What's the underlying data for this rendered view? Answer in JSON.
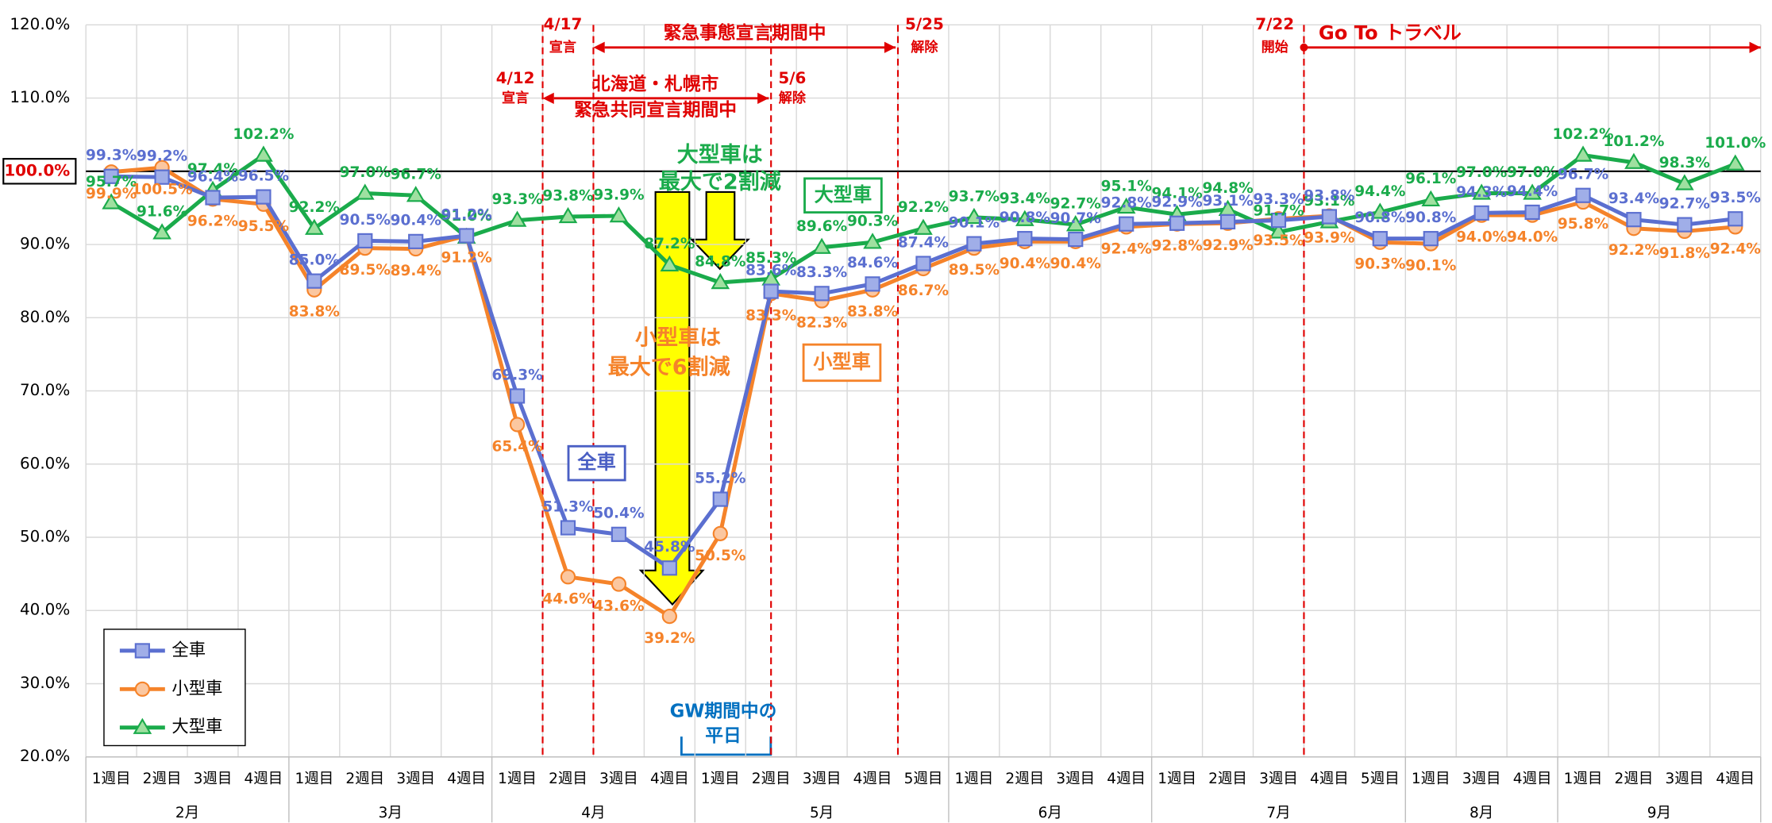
{
  "chart_data": {
    "type": "line",
    "months": [
      {
        "label": "2月",
        "weeks": [
          "1週目",
          "2週目",
          "3週目",
          "4週目"
        ]
      },
      {
        "label": "3月",
        "weeks": [
          "1週目",
          "2週目",
          "3週目",
          "4週目"
        ]
      },
      {
        "label": "4月",
        "weeks": [
          "1週目",
          "2週目",
          "3週目",
          "4週目"
        ]
      },
      {
        "label": "5月",
        "weeks": [
          "1週目",
          "2週目",
          "3週目",
          "4週目",
          "5週目"
        ]
      },
      {
        "label": "6月",
        "weeks": [
          "1週目",
          "2週目",
          "3週目",
          "4週目"
        ]
      },
      {
        "label": "7月",
        "weeks": [
          "1週目",
          "2週目",
          "3週目",
          "4週目",
          "5週目"
        ]
      },
      {
        "label": "8月",
        "weeks": [
          "1週目",
          "3週目",
          "4週目"
        ]
      },
      {
        "label": "9月",
        "weeks": [
          "1週目",
          "2週目",
          "3週目",
          "4週目"
        ]
      }
    ],
    "series": [
      {
        "name": "全車",
        "color": "#5b6fd0",
        "marker": "square",
        "label_pos": "above",
        "values": [
          99.3,
          99.2,
          96.4,
          96.5,
          85.0,
          90.5,
          90.4,
          91.2,
          69.3,
          51.3,
          50.4,
          45.8,
          55.2,
          83.6,
          83.3,
          84.6,
          87.4,
          90.1,
          90.8,
          90.7,
          92.8,
          92.9,
          93.1,
          93.3,
          93.8,
          90.8,
          90.8,
          94.3,
          94.4,
          96.7,
          93.4,
          92.7,
          93.5
        ],
        "value_labels": [
          "99.3%",
          "99.2%",
          "96.4%",
          "96.5%",
          "85.0%",
          "90.5%",
          "90.4%",
          "91.2%",
          "69.3%",
          "51.3%",
          "50.4%",
          "45.8%",
          "55.2%",
          "83.6%",
          "83.3%",
          "84.6%",
          "87.4%",
          "90.1%",
          "90.8%",
          "90.7%",
          "92.8%",
          "92.9%",
          "93.1%",
          "93.3%",
          "93.8%",
          "90.8%",
          "90.8%",
          "94.3%",
          "94.4%",
          "96.7%",
          "93.4%",
          "92.7%",
          "93.5%"
        ]
      },
      {
        "name": "小型車",
        "color": "#f5832a",
        "marker": "circle",
        "label_pos": "below",
        "values": [
          99.9,
          100.5,
          96.2,
          95.5,
          83.8,
          89.5,
          89.4,
          91.2,
          65.4,
          44.6,
          43.6,
          39.2,
          50.5,
          83.3,
          82.3,
          83.8,
          86.7,
          89.5,
          90.4,
          90.4,
          92.4,
          92.8,
          92.9,
          93.5,
          93.9,
          90.3,
          90.1,
          94.0,
          94.0,
          95.8,
          92.2,
          91.8,
          92.4
        ],
        "value_labels": [
          "99.9%",
          "100.5%",
          "96.2%",
          "95.5%",
          "83.8%",
          "89.5%",
          "89.4%",
          "91.2%",
          "65.4%",
          "44.6%",
          "43.6%",
          "39.2%",
          "50.5%",
          "83.3%",
          "82.3%",
          "83.8%",
          "86.7%",
          "89.5%",
          "90.4%",
          "90.4%",
          "92.4%",
          "92.8%",
          "92.9%",
          "93.5%",
          "93.9%",
          "90.3%",
          "90.1%",
          "94.0%",
          "94.0%",
          "95.8%",
          "92.2%",
          "91.8%",
          "92.4%"
        ]
      },
      {
        "name": "大型車",
        "color": "#1aab4b",
        "marker": "triangle",
        "label_pos": "above",
        "values": [
          95.7,
          91.6,
          97.4,
          102.2,
          92.2,
          97.0,
          96.7,
          91.0,
          93.3,
          93.8,
          93.9,
          87.2,
          84.8,
          85.3,
          89.6,
          90.3,
          92.2,
          93.7,
          93.4,
          92.7,
          95.1,
          94.1,
          94.8,
          91.7,
          93.1,
          94.4,
          96.1,
          97.0,
          97.0,
          102.2,
          101.2,
          98.3,
          101.0
        ],
        "value_labels": [
          "95.7%",
          "91.6%",
          "97.4%",
          "102.2%",
          "92.2%",
          "97.0%",
          "96.7%",
          "91.0%",
          "93.3%",
          "93.8%",
          "93.9%",
          "87.2%",
          "84.8%",
          "85.3%",
          "89.6%",
          "90.3%",
          "92.2%",
          "93.7%",
          "93.4%",
          "92.7%",
          "95.1%",
          "94.1%",
          "94.8%",
          "91.7%",
          "93.1%",
          "94.4%",
          "96.1%",
          "97.0%",
          "97.0%",
          "102.2%",
          "101.2%",
          "98.3%",
          "101.0%"
        ]
      }
    ],
    "ylim": [
      20,
      120
    ],
    "yticks": [
      {
        "value": 20,
        "label": "20.0%"
      },
      {
        "value": 30,
        "label": "30.0%"
      },
      {
        "value": 40,
        "label": "40.0%"
      },
      {
        "value": 50,
        "label": "50.0%"
      },
      {
        "value": 60,
        "label": "60.0%"
      },
      {
        "value": 70,
        "label": "70.0%"
      },
      {
        "value": 80,
        "label": "80.0%"
      },
      {
        "value": 90,
        "label": "90.0%"
      },
      {
        "value": 100,
        "label": "100.0%"
      },
      {
        "value": 110,
        "label": "110.0%"
      },
      {
        "value": 120,
        "label": "120.0%"
      }
    ],
    "highlight_tick": 8,
    "grid": true,
    "legend": "lower left",
    "annotations": [
      "4/17",
      "宣言",
      "緊急事態宣言期間中",
      "5/25",
      "解除",
      "7/22",
      "開始",
      "Go To トラベル",
      "4/12",
      "宣言",
      "北海道・札幌市",
      "緊急共同宣言期間中",
      "5/6",
      "解除",
      "大型車は",
      "最大で2割減",
      "大型車",
      "小型車は",
      "最大で6割減",
      "小型車",
      "全車",
      "GW期間中の",
      "平日"
    ]
  }
}
